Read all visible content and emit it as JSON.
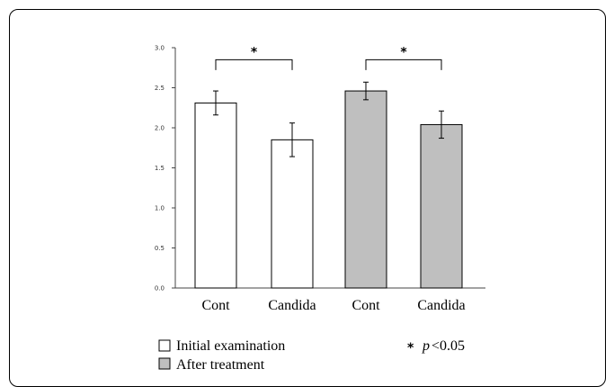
{
  "chart_data": {
    "type": "bar",
    "title": "",
    "xlabel": "",
    "ylabel": "",
    "ylim": [
      0,
      3.0
    ],
    "y_ticks": [
      "0.0",
      "0.5",
      "1.0",
      "1.5",
      "2.0",
      "2.5",
      "3.0"
    ],
    "categories": [
      "Cont",
      "Candida",
      "Cont",
      "Candida"
    ],
    "series": [
      {
        "name": "Initial examination",
        "color": "#ffffff",
        "values": [
          2.31,
          1.85,
          null,
          null
        ],
        "errors": [
          0.15,
          0.21,
          null,
          null
        ]
      },
      {
        "name": "After treatment",
        "color": "#bfbfbf",
        "values": [
          null,
          null,
          2.46,
          2.04
        ],
        "errors": [
          null,
          null,
          0.11,
          0.17
        ]
      }
    ],
    "significance": [
      {
        "between": [
          0,
          1
        ],
        "symbol": "*"
      },
      {
        "between": [
          2,
          3
        ],
        "symbol": "*"
      }
    ],
    "legend": {
      "items": [
        "Initial examination",
        "After treatment"
      ],
      "note_symbol": "*",
      "note_p": "p",
      "note_text": "<0.05"
    }
  }
}
